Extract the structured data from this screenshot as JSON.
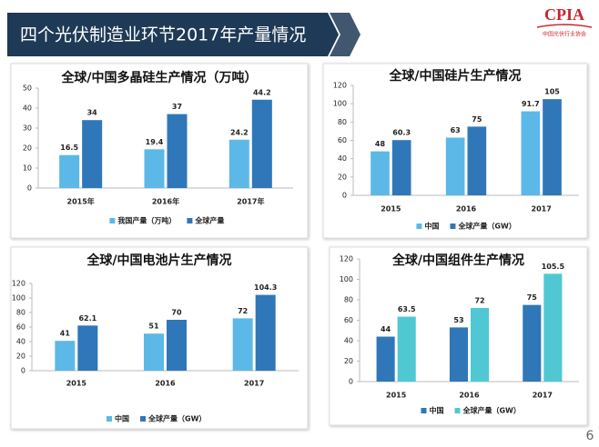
{
  "header": {
    "title": "四个光伏制造业环节2017年产量情况"
  },
  "logo": {
    "name": "CPIA",
    "subtitle": "中国光伏行业协会"
  },
  "page_number": "6",
  "chart_data": [
    {
      "type": "bar",
      "title": "全球/中国多晶硅生产情况（万吨）",
      "categories": [
        "2015年",
        "2016年",
        "2017年"
      ],
      "series": [
        {
          "name": "我国产量（万吨）",
          "color": "#5cb8e6",
          "values": [
            16.5,
            19.4,
            24.2
          ]
        },
        {
          "name": "全球产量",
          "color": "#2f77b8",
          "values": [
            34,
            37,
            44.2
          ]
        }
      ],
      "ylim": [
        0,
        50
      ],
      "yticks": [
        0,
        10,
        20,
        30,
        40,
        50
      ],
      "legend": "bottom"
    },
    {
      "type": "bar",
      "title": "全球/中国硅片生产情况",
      "categories": [
        "2015",
        "2016",
        "2017"
      ],
      "series": [
        {
          "name": "中国",
          "color": "#5cb8e6",
          "values": [
            48,
            63,
            91.7
          ]
        },
        {
          "name": "全球产量（GW）",
          "color": "#2f77b8",
          "values": [
            60.3,
            75,
            105
          ]
        }
      ],
      "ylim": [
        0,
        120
      ],
      "yticks": [
        0,
        20,
        40,
        60,
        80,
        100,
        120
      ],
      "legend": "bottom"
    },
    {
      "type": "bar",
      "title": "全球/中国电池片生产情况",
      "categories": [
        "2015",
        "2016",
        "2017"
      ],
      "series": [
        {
          "name": "中国",
          "color": "#5cb8e6",
          "values": [
            41,
            51,
            72
          ]
        },
        {
          "name": "全球产量（GW）",
          "color": "#2f77b8",
          "values": [
            62.1,
            70,
            104.3
          ]
        }
      ],
      "ylim": [
        0,
        120
      ],
      "yticks": [
        0,
        20,
        40,
        60,
        80,
        100,
        120
      ],
      "legend": "bottom"
    },
    {
      "type": "bar",
      "title": "全球/中国组件生产情况",
      "categories": [
        "2015",
        "2016",
        "2017"
      ],
      "series": [
        {
          "name": "中国",
          "color": "#2f77b8",
          "values": [
            44,
            53,
            75
          ]
        },
        {
          "name": "全球产量（GW）",
          "color": "#4fc8d4",
          "values": [
            63.5,
            72,
            105.5
          ]
        }
      ],
      "ylim": [
        0,
        120
      ],
      "yticks": [
        0,
        20,
        40,
        60,
        80,
        100,
        120
      ],
      "legend": "bottom"
    }
  ]
}
